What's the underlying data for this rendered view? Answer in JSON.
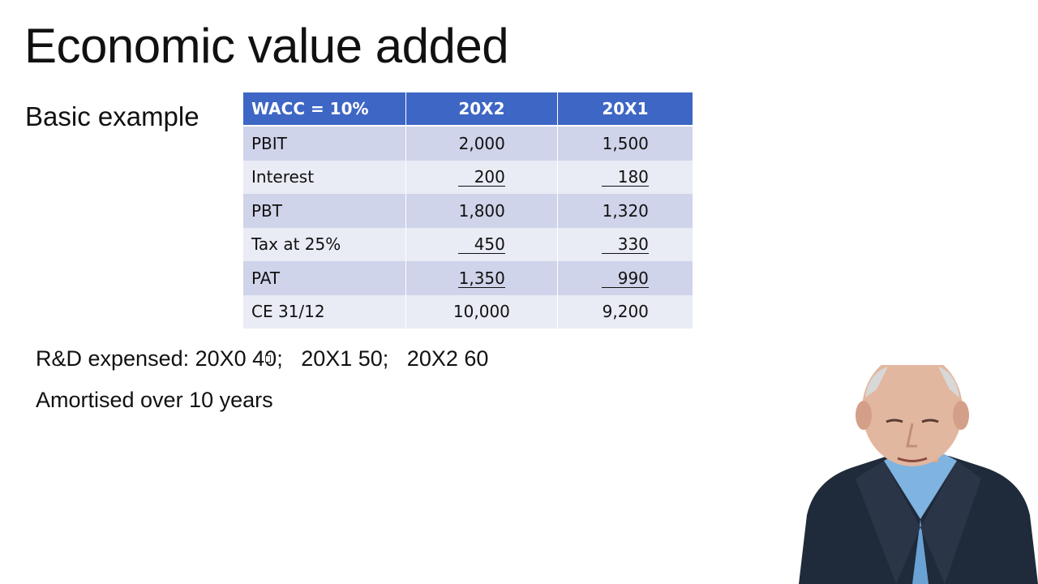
{
  "slide": {
    "title": "Economic value added",
    "subtitle": "Basic example"
  },
  "table": {
    "headers": [
      "WACC = 10%",
      "20X2",
      "20X1"
    ],
    "rows": [
      {
        "label": "PBIT",
        "v1": "2,000",
        "v2": "1,500"
      },
      {
        "label": "Interest",
        "v1": "200",
        "v2": "180"
      },
      {
        "label": "PBT",
        "v1": "1,800",
        "v2": "1,320"
      },
      {
        "label": "Tax at 25%",
        "v1": "450",
        "v2": "330"
      },
      {
        "label": "PAT",
        "v1": "1,350",
        "v2": "990"
      },
      {
        "label": "CE 31/12",
        "v1": "10,000",
        "v2": "9,200"
      }
    ]
  },
  "notes": {
    "line1": "R&D expensed: 20X0 40;   20X1 50;   20X2 60",
    "line2": "Amortised over 10 years"
  },
  "colors": {
    "header_bg": "#3e66c4",
    "row_odd_bg": "#cfd4ea",
    "row_even_bg": "#e9ebf5"
  }
}
